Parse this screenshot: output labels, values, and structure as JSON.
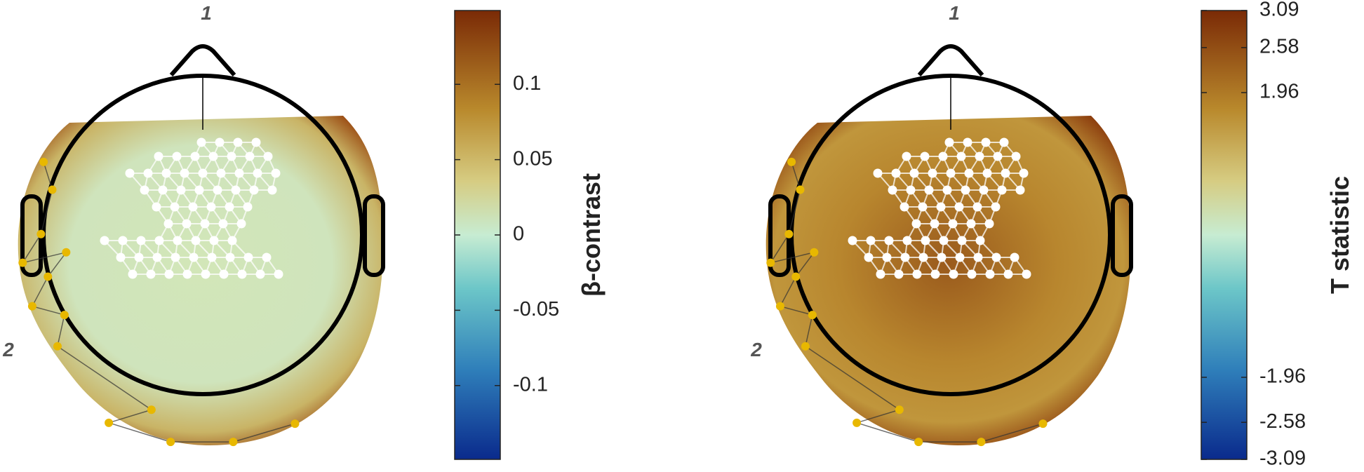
{
  "panels": [
    {
      "labels": [
        "1",
        "2"
      ],
      "colorbar": {
        "label": "β-contrast",
        "ylim": [
          -0.149,
          0.149
        ],
        "yticks": [
          -0.1,
          -0.05,
          0,
          0.05,
          0.1
        ]
      }
    },
    {
      "labels": [
        "1",
        "2"
      ],
      "colorbar": {
        "label": "T statistic",
        "ylim": [
          -3.09,
          3.09
        ],
        "yticks": [
          -3.09,
          -2.58,
          -1.96,
          1.96,
          2.58,
          3.09
        ]
      }
    }
  ]
}
